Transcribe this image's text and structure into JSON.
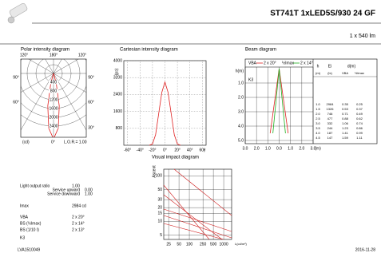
{
  "header": {
    "title": "ST741T 1xLED5S/930 24 GF",
    "flux": "1 x 540 lm"
  },
  "polar": {
    "title": "Polar intensity diagram",
    "angle_labels": [
      "120°",
      "180°",
      "120°",
      "90°",
      "90°",
      "60°",
      "60°",
      "30°"
    ],
    "rings": [
      400,
      800,
      1200,
      1600,
      2000,
      2400
    ],
    "unit": "(cd)",
    "zero": "0°",
    "lor": "L.O.R.= 1.00"
  },
  "cartesian": {
    "title": "Cartesian intensity diagram",
    "y_label": "(cd)",
    "x_label": "γ",
    "color": "#e02020",
    "x": [
      -25,
      -20,
      -15,
      -10,
      -5,
      0,
      5,
      10,
      15,
      20,
      25
    ],
    "values": [
      0,
      60,
      500,
      1500,
      2500,
      2984,
      2500,
      1500,
      500,
      60,
      0
    ],
    "xlim": [
      -66,
      66
    ],
    "ylim": [
      0,
      4000
    ],
    "xticks": [
      {
        "value": -60,
        "label": "-60°"
      },
      {
        "value": -40,
        "label": "-40°"
      },
      {
        "value": -20,
        "label": "-20°"
      },
      {
        "value": 0,
        "label": "0°"
      },
      {
        "value": 20,
        "label": "20°"
      },
      {
        "value": 40,
        "label": "40°"
      },
      {
        "value": 60,
        "label": "60°"
      }
    ],
    "yticks": [
      800,
      1600,
      2400,
      3200,
      4000
    ]
  },
  "beam": {
    "title": "Beam diagram",
    "y_label": "h(m)",
    "x_unit": "(m)",
    "class_label": "K3",
    "legend": [
      {
        "name": "VBA",
        "label": "2 x 20°",
        "color": "#e02020"
      },
      {
        "name": "½Imax",
        "label": "2 x 14°",
        "color": "#20b020"
      }
    ],
    "xlim": [
      -3.0,
      3.0
    ],
    "ylim": [
      0,
      5.0
    ],
    "xticks": [
      {
        "value": -3,
        "label": "3.0"
      },
      {
        "value": -2,
        "label": "2.0"
      },
      {
        "value": -1,
        "label": "1.0"
      },
      {
        "value": 0,
        "label": "0.0"
      },
      {
        "value": 1,
        "label": "1.0"
      },
      {
        "value": 2,
        "label": "2.0"
      },
      {
        "value": 3,
        "label": "3.0"
      }
    ],
    "yticks": [
      {
        "value": 1,
        "label": "1.0"
      },
      {
        "value": 2,
        "label": "2.0"
      },
      {
        "value": 3,
        "label": "3.0"
      },
      {
        "value": 4,
        "label": "4.0"
      },
      {
        "value": 5,
        "label": "5.0"
      }
    ],
    "table": {
      "headers": [
        "h",
        "Ei",
        "d(m)"
      ],
      "subheaders": [
        "(m)",
        "(lx)",
        "VBA",
        "½Imax"
      ],
      "h": [
        1.0,
        1.5,
        2.0,
        2.5,
        3.0,
        3.5,
        4.0,
        4.5
      ],
      "ei": [
        2984,
        1326,
        746,
        477,
        332,
        244,
        187,
        147
      ],
      "vba": [
        0.35,
        0.53,
        0.71,
        0.88,
        1.06,
        1.23,
        1.41,
        1.59
      ],
      "half": [
        0.25,
        0.37,
        0.49,
        0.62,
        0.74,
        0.86,
        0.99,
        1.11
      ]
    }
  },
  "visual": {
    "title": "Visual impact diagram",
    "y_label": "Ascent",
    "x_unit": "L(cd/m²)",
    "ylim": [
      4,
      140
    ],
    "yticks": [
      5,
      10,
      15,
      20,
      30,
      50,
      100
    ],
    "xlim": [
      18,
      1700
    ],
    "xticks": [
      25,
      50,
      100,
      250,
      500,
      1000
    ]
  },
  "specs": [
    {
      "label": "Light output ratio",
      "value": "1.00"
    },
    {
      "label": "Service upward",
      "value": "0.00"
    },
    {
      "label": "Service downward",
      "value": "1.00"
    },
    {
      "label": "Imax",
      "value": "2984 cd"
    },
    {
      "label": "VBA",
      "value": "2 x 20°"
    },
    {
      "label": "BS (½Imax)",
      "value": "2 x 14°"
    },
    {
      "label": "BS (1/10 I)",
      "value": "2 x 13°"
    },
    {
      "label": "K3",
      "value": ""
    }
  ],
  "footer": {
    "code": "LVA1510049",
    "date": "2016-11-28"
  }
}
